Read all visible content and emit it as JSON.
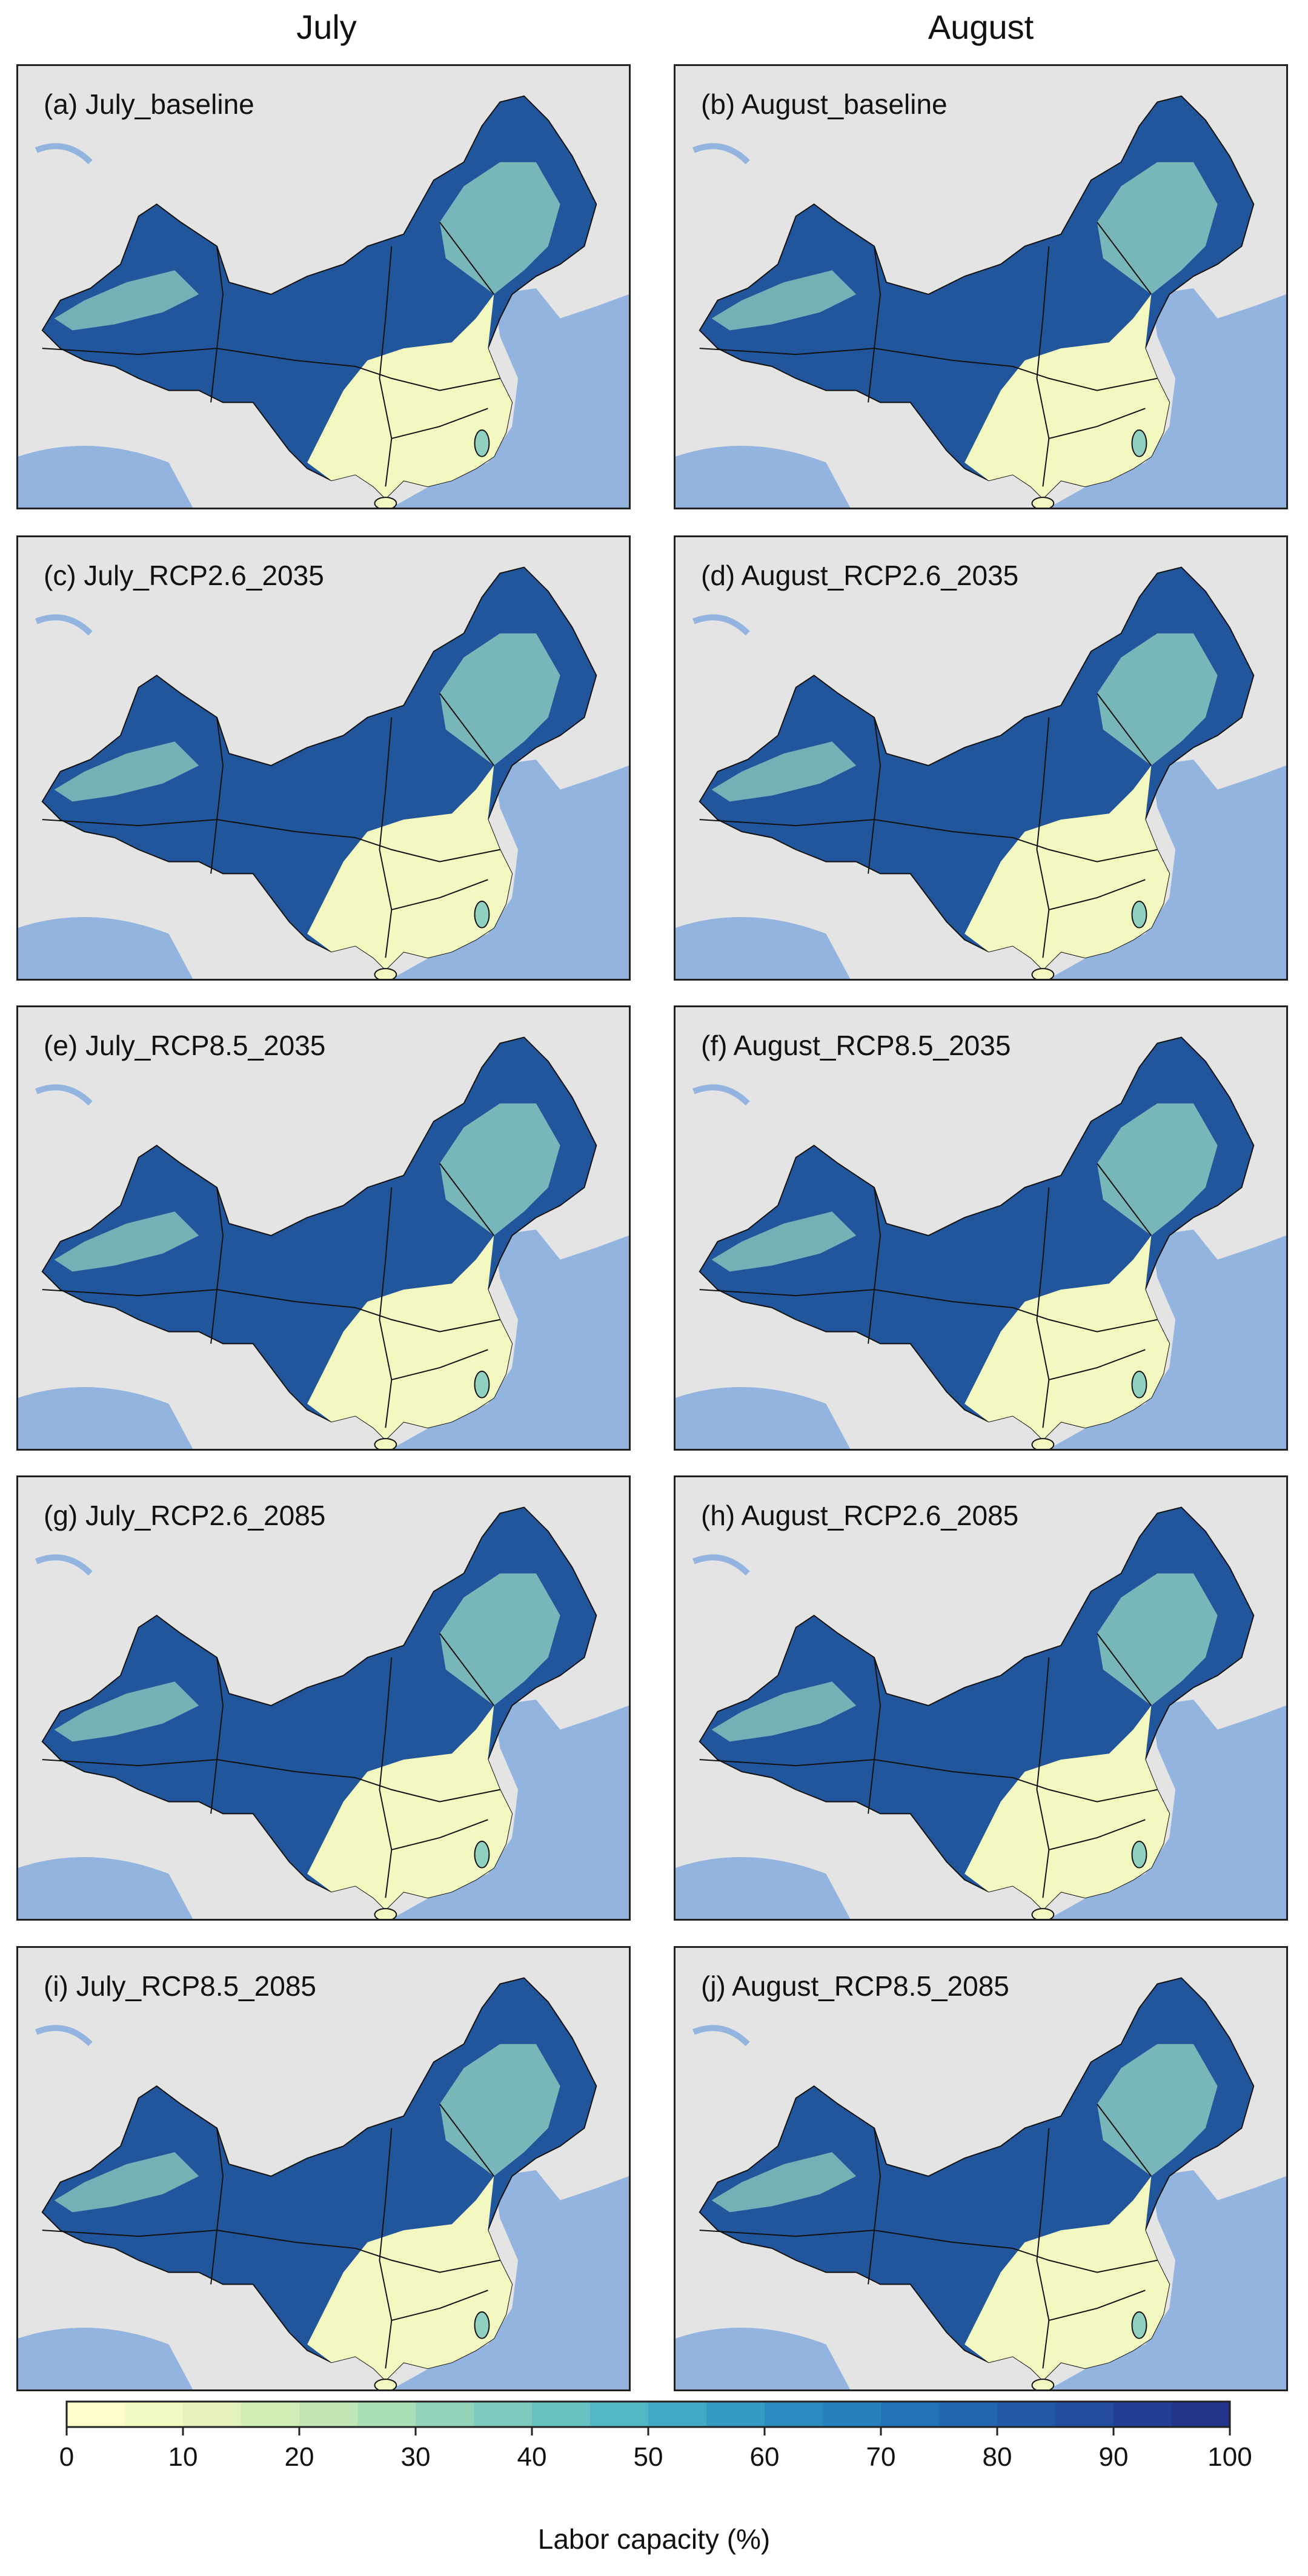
{
  "columns": [
    "July",
    "August"
  ],
  "panels": [
    {
      "label": "(a) July_baseline",
      "month": "July",
      "scenario": "baseline",
      "year": ""
    },
    {
      "label": "(b) August_baseline",
      "month": "August",
      "scenario": "baseline",
      "year": ""
    },
    {
      "label": "(c) July_RCP2.6_2035",
      "month": "July",
      "scenario": "RCP2.6",
      "year": "2035"
    },
    {
      "label": "(d) August_RCP2.6_2035",
      "month": "August",
      "scenario": "RCP2.6",
      "year": "2035"
    },
    {
      "label": "(e) July_RCP8.5_2035",
      "month": "July",
      "scenario": "RCP8.5",
      "year": "2035"
    },
    {
      "label": "(f) August_RCP8.5_2035",
      "month": "August",
      "scenario": "RCP8.5",
      "year": "2035"
    },
    {
      "label": "(g) July_RCP2.6_2085",
      "month": "July",
      "scenario": "RCP2.6",
      "year": "2085"
    },
    {
      "label": "(h) August_RCP2.6_2085",
      "month": "August",
      "scenario": "RCP2.6",
      "year": "2085"
    },
    {
      "label": "(i) July_RCP8.5_2085",
      "month": "July",
      "scenario": "RCP8.5",
      "year": "2085"
    },
    {
      "label": "(j) August_RCP8.5_2085",
      "month": "August",
      "scenario": "RCP8.5",
      "year": "2085"
    }
  ],
  "colorbar": {
    "title": "Labor capacity (%)",
    "min": 0,
    "max": 100,
    "step": 5,
    "ticks": [
      "0",
      "10",
      "20",
      "30",
      "40",
      "50",
      "60",
      "70",
      "80",
      "90",
      "100"
    ],
    "colors": [
      "#ffffcc",
      "#f2f9c2",
      "#e3f3bb",
      "#d3edb7",
      "#c0e6b5",
      "#aadeb6",
      "#93d4b8",
      "#7ccbbc",
      "#66c1c0",
      "#52b6c3",
      "#42a9c4",
      "#349bc2",
      "#2a8cbe",
      "#2580bb",
      "#2272b6",
      "#2166ae",
      "#2159a5",
      "#214d9c",
      "#223f93",
      "#22338a"
    ]
  },
  "map_colors": {
    "ocean": "#94b4e0",
    "land_other": "#e4e4e4",
    "low_capacity": "#f3f8c0",
    "mid_capacity": "#8fd0c0",
    "high_capacity": "#22569c"
  }
}
